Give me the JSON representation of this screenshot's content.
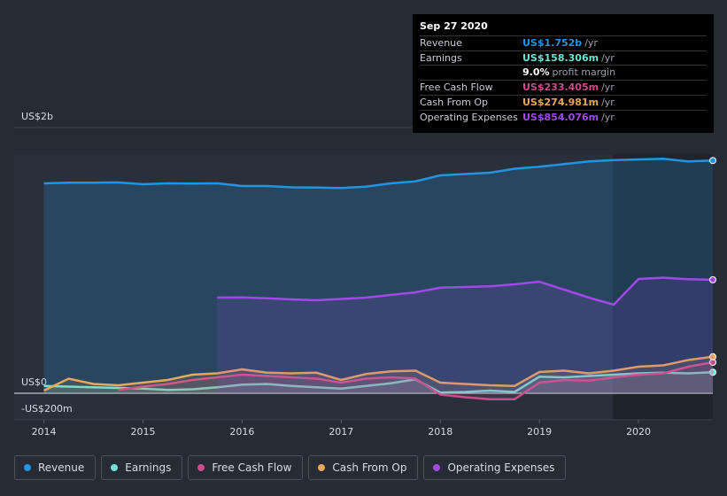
{
  "chart_data": {
    "type": "line",
    "x": [
      2014,
      2014.25,
      2014.5,
      2014.75,
      2015,
      2015.25,
      2015.5,
      2015.75,
      2016,
      2016.25,
      2016.5,
      2016.75,
      2017,
      2017.25,
      2017.5,
      2017.75,
      2018,
      2018.25,
      2018.5,
      2018.75,
      2019,
      2019.25,
      2019.5,
      2019.75,
      2020,
      2020.25,
      2020.5,
      2020.75
    ],
    "xlim": [
      2013.7,
      2020.75
    ],
    "xticks": [
      2014,
      2015,
      2016,
      2017,
      2018,
      2019,
      2020
    ],
    "ylim": [
      -200,
      2000
    ],
    "yticks": [
      {
        "value": 2000,
        "label": "US$2b"
      },
      {
        "value": 0,
        "label": "US$0"
      },
      {
        "value": -200,
        "label": "-US$200m"
      }
    ],
    "series": [
      {
        "name": "Revenue",
        "color": "#2394df",
        "values": [
          1580,
          1585,
          1585,
          1587,
          1573,
          1580,
          1578,
          1580,
          1560,
          1560,
          1550,
          1548,
          1545,
          1555,
          1580,
          1595,
          1640,
          1650,
          1660,
          1690,
          1705,
          1725,
          1745,
          1755,
          1760,
          1765,
          1745,
          1752
        ]
      },
      {
        "name": "Earnings",
        "color": "#6fe3d6",
        "values": [
          55,
          50,
          45,
          40,
          35,
          25,
          30,
          45,
          65,
          70,
          55,
          45,
          35,
          55,
          75,
          105,
          5,
          10,
          20,
          10,
          125,
          120,
          130,
          140,
          150,
          155,
          150,
          158.306
        ]
      },
      {
        "name": "Free Cash Flow",
        "color": "#cc4b8c",
        "values": [
          null,
          null,
          null,
          25,
          50,
          70,
          100,
          120,
          140,
          130,
          120,
          110,
          80,
          110,
          120,
          110,
          -10,
          -30,
          -45,
          -45,
          80,
          100,
          95,
          120,
          140,
          150,
          200,
          233.405
        ]
      },
      {
        "name": "Cash From Op",
        "color": "#e6a85a",
        "values": [
          20,
          110,
          70,
          60,
          80,
          100,
          140,
          150,
          180,
          155,
          150,
          155,
          100,
          145,
          165,
          170,
          80,
          70,
          60,
          55,
          160,
          170,
          150,
          170,
          200,
          210,
          250,
          274.981
        ]
      },
      {
        "name": "Operating Expenses",
        "color": "#a149e8",
        "values": [
          null,
          null,
          null,
          null,
          null,
          null,
          null,
          720,
          722,
          715,
          707,
          700,
          710,
          720,
          740,
          760,
          795,
          800,
          805,
          820,
          840,
          780,
          720,
          667,
          860,
          870,
          858,
          854.076
        ]
      }
    ]
  },
  "tooltip": {
    "date": "Sep 27 2020",
    "rows": [
      {
        "label": "Revenue",
        "value": "US$1.752b",
        "unit": "/yr"
      },
      {
        "label": "Earnings",
        "value": "US$158.306m",
        "unit": "/yr"
      },
      {
        "label": "",
        "value": "9.0%",
        "unit": "profit margin"
      },
      {
        "label": "Free Cash Flow",
        "value": "US$233.405m",
        "unit": "/yr"
      },
      {
        "label": "Cash From Op",
        "value": "US$274.981m",
        "unit": "/yr"
      },
      {
        "label": "Operating Expenses",
        "value": "US$854.076m",
        "unit": "/yr"
      }
    ]
  }
}
